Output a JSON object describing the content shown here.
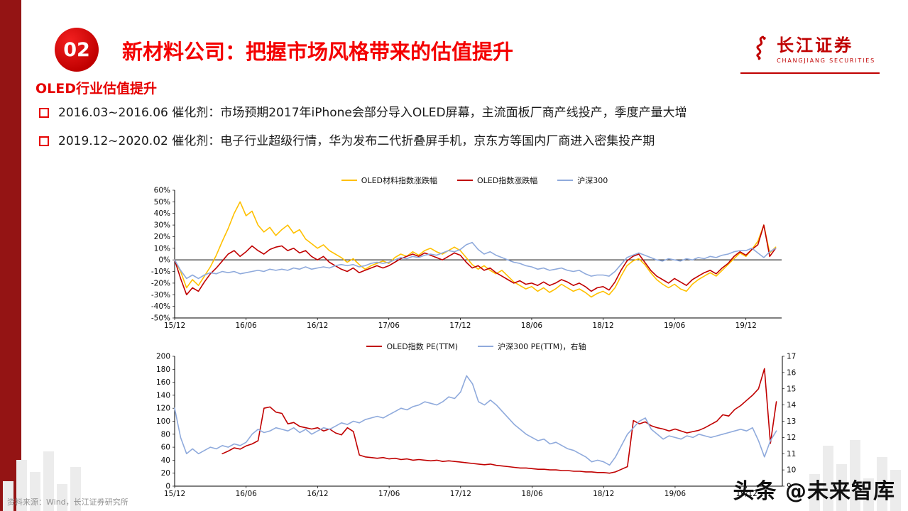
{
  "page": {
    "slide_number": "02",
    "title": "新材料公司：把握市场风格带来的估值提升",
    "section_heading": "OLED行业估值提升",
    "bullets": [
      "2016.03~2016.06 催化剂：市场预期2017年iPhone会部分导入OLED屏幕，主流面板厂商产线投产，季度产量大增",
      "2019.12~2020.02 催化剂：电子行业超级行情，华为发布二代折叠屏手机，京东方等国内厂商进入密集投产期"
    ],
    "source_note": "资料来源：Wind，长江证券研究所",
    "watermark": "头条 @未来智库"
  },
  "brand": {
    "name": "长江证券",
    "subtitle": "CHANGJIANG SECURITIES"
  },
  "theme": {
    "accent_red": "#e60000",
    "sidebar_red": "#941414",
    "gold_series": "#FFC000",
    "red_series": "#C00000",
    "blue_series": "#8FAADC"
  },
  "chart_data": [
    {
      "type": "line",
      "title": "",
      "zero_line": true,
      "x_axis": {
        "domain": [
          0,
          51
        ],
        "unit": "months since 2015-12",
        "tick_positions": [
          0,
          6,
          12,
          18,
          24,
          30,
          36,
          42,
          48
        ],
        "tick_labels": [
          "15/12",
          "16/06",
          "16/12",
          "17/06",
          "17/12",
          "18/06",
          "18/12",
          "19/06",
          "19/12"
        ]
      },
      "y_axis": {
        "min": -50,
        "max": 60,
        "step": 10,
        "format": "percent"
      },
      "legend_position": "top-center",
      "grid": false,
      "series": [
        {
          "name": "OLED材料指数涨跌幅",
          "color": "#FFC000",
          "axis": "left",
          "x_start": 0,
          "x_step": 0.5,
          "values": [
            0,
            -10,
            -24,
            -17,
            -22,
            -14,
            -6,
            4,
            16,
            27,
            40,
            50,
            38,
            42,
            30,
            24,
            28,
            21,
            26,
            30,
            23,
            26,
            18,
            14,
            10,
            13,
            8,
            5,
            2,
            -2,
            1,
            -4,
            -8,
            -5,
            -3,
            -1,
            -3,
            2,
            5,
            3,
            7,
            4,
            8,
            10,
            7,
            5,
            8,
            11,
            8,
            2,
            -4,
            -8,
            -5,
            -9,
            -12,
            -9,
            -14,
            -19,
            -22,
            -25,
            -23,
            -27,
            -24,
            -28,
            -25,
            -21,
            -24,
            -27,
            -25,
            -28,
            -32,
            -29,
            -27,
            -30,
            -24,
            -14,
            -5,
            -1,
            1,
            -4,
            -11,
            -17,
            -21,
            -24,
            -21,
            -25,
            -27,
            -21,
            -17,
            -14,
            -11,
            -14,
            -9,
            -4,
            1,
            6,
            3,
            9,
            16,
            30,
            6,
            11
          ]
        },
        {
          "name": "OLED指数涨跌幅",
          "color": "#C00000",
          "axis": "left",
          "x_start": 0,
          "x_step": 0.5,
          "values": [
            0,
            -16,
            -30,
            -24,
            -27,
            -19,
            -12,
            -7,
            -1,
            5,
            8,
            3,
            7,
            12,
            8,
            5,
            9,
            11,
            12,
            8,
            10,
            6,
            8,
            3,
            0,
            3,
            -2,
            -5,
            -8,
            -10,
            -7,
            -11,
            -9,
            -7,
            -5,
            -7,
            -5,
            -2,
            1,
            3,
            5,
            3,
            6,
            4,
            2,
            0,
            3,
            6,
            4,
            -2,
            -7,
            -5,
            -9,
            -7,
            -11,
            -14,
            -17,
            -20,
            -18,
            -21,
            -20,
            -22,
            -19,
            -22,
            -20,
            -17,
            -19,
            -22,
            -20,
            -23,
            -27,
            -24,
            -23,
            -26,
            -19,
            -9,
            -1,
            3,
            5,
            -2,
            -9,
            -14,
            -17,
            -20,
            -16,
            -19,
            -22,
            -17,
            -14,
            -11,
            -9,
            -12,
            -7,
            -3,
            3,
            7,
            4,
            9,
            13,
            30,
            3,
            10
          ]
        },
        {
          "name": "沪深300",
          "color": "#8FAADC",
          "axis": "left",
          "x_start": 0,
          "x_step": 0.5,
          "values": [
            0,
            -9,
            -16,
            -13,
            -16,
            -13,
            -11,
            -12,
            -10,
            -11,
            -10,
            -12,
            -11,
            -10,
            -9,
            -10,
            -8,
            -9,
            -8,
            -9,
            -7,
            -8,
            -6,
            -8,
            -7,
            -6,
            -7,
            -5,
            -4,
            -5,
            -4,
            -6,
            -5,
            -3,
            -2,
            -3,
            -2,
            0,
            2,
            1,
            3,
            2,
            4,
            5,
            4,
            6,
            8,
            7,
            9,
            13,
            15,
            9,
            5,
            7,
            4,
            2,
            0,
            -2,
            -3,
            -5,
            -6,
            -8,
            -7,
            -9,
            -8,
            -7,
            -9,
            -10,
            -9,
            -12,
            -14,
            -13,
            -13,
            -14,
            -10,
            -4,
            2,
            4,
            6,
            4,
            2,
            0,
            -1,
            1,
            0,
            -1,
            1,
            0,
            2,
            1,
            3,
            2,
            4,
            5,
            7,
            8,
            8,
            10,
            6,
            2,
            7,
            10
          ]
        }
      ]
    },
    {
      "type": "line",
      "title": "",
      "zero_line": false,
      "x_axis": {
        "domain": [
          0,
          51
        ],
        "unit": "months since 2015-12",
        "tick_positions": [
          0,
          6,
          12,
          18,
          24,
          30,
          36,
          42,
          48
        ],
        "tick_labels": [
          "15/12",
          "16/06",
          "16/12",
          "17/06",
          "17/12",
          "18/06",
          "18/12",
          "19/06",
          "19/12"
        ]
      },
      "y_axis_left": {
        "min": 0,
        "max": 200,
        "step": 20,
        "format": "number"
      },
      "y_axis_right": {
        "min": 9,
        "max": 17,
        "step": 1,
        "format": "number"
      },
      "legend_position": "top-center",
      "grid": false,
      "series": [
        {
          "name": "OLED指数 PE(TTM)",
          "color": "#C00000",
          "axis": "left",
          "x_start": 4,
          "x_step": 0.5,
          "values": [
            50,
            54,
            59,
            57,
            62,
            65,
            70,
            120,
            122,
            114,
            112,
            96,
            98,
            92,
            90,
            88,
            90,
            85,
            88,
            82,
            79,
            90,
            84,
            48,
            45,
            44,
            43,
            44,
            42,
            43,
            41,
            42,
            40,
            41,
            40,
            39,
            40,
            38,
            39,
            38,
            37,
            36,
            35,
            34,
            33,
            34,
            32,
            31,
            30,
            29,
            28,
            28,
            27,
            26,
            26,
            25,
            25,
            24,
            24,
            23,
            23,
            22,
            22,
            21,
            21,
            20,
            22,
            26,
            30,
            101,
            96,
            99,
            93,
            90,
            88,
            85,
            88,
            85,
            82,
            84,
            86,
            90,
            95,
            100,
            110,
            108,
            118,
            124,
            132,
            140,
            150,
            181,
            66,
            130
          ]
        },
        {
          "name": "沪深300 PE(TTM)，右轴",
          "color": "#8FAADC",
          "axis": "right",
          "x_start": 0,
          "x_step": 0.5,
          "values": [
            13.8,
            12,
            11,
            11.3,
            11,
            11.2,
            11.4,
            11.3,
            11.5,
            11.4,
            11.6,
            11.5,
            11.7,
            12.2,
            12.5,
            12.3,
            12.4,
            12.6,
            12.5,
            12.4,
            12.6,
            12.3,
            12.5,
            12.2,
            12.4,
            12.6,
            12.5,
            12.7,
            12.9,
            12.8,
            13,
            12.9,
            13.1,
            13.2,
            13.3,
            13.2,
            13.4,
            13.6,
            13.8,
            13.7,
            13.9,
            14,
            14.2,
            14.1,
            14,
            14.2,
            14.5,
            14.4,
            14.8,
            15.8,
            15.3,
            14.2,
            14,
            14.3,
            14,
            13.6,
            13.2,
            12.8,
            12.5,
            12.2,
            12,
            11.8,
            11.9,
            11.6,
            11.7,
            11.5,
            11.3,
            11.2,
            11,
            10.8,
            10.5,
            10.6,
            10.5,
            10.3,
            10.8,
            11.5,
            12.2,
            12.6,
            13,
            13.2,
            12.5,
            12.2,
            11.9,
            12.1,
            12,
            11.9,
            12.1,
            12,
            12.2,
            12.1,
            12,
            12.1,
            12.2,
            12.3,
            12.4,
            12.5,
            12.4,
            12.6,
            11.8,
            10.8,
            11.8,
            12.4
          ]
        }
      ]
    }
  ]
}
